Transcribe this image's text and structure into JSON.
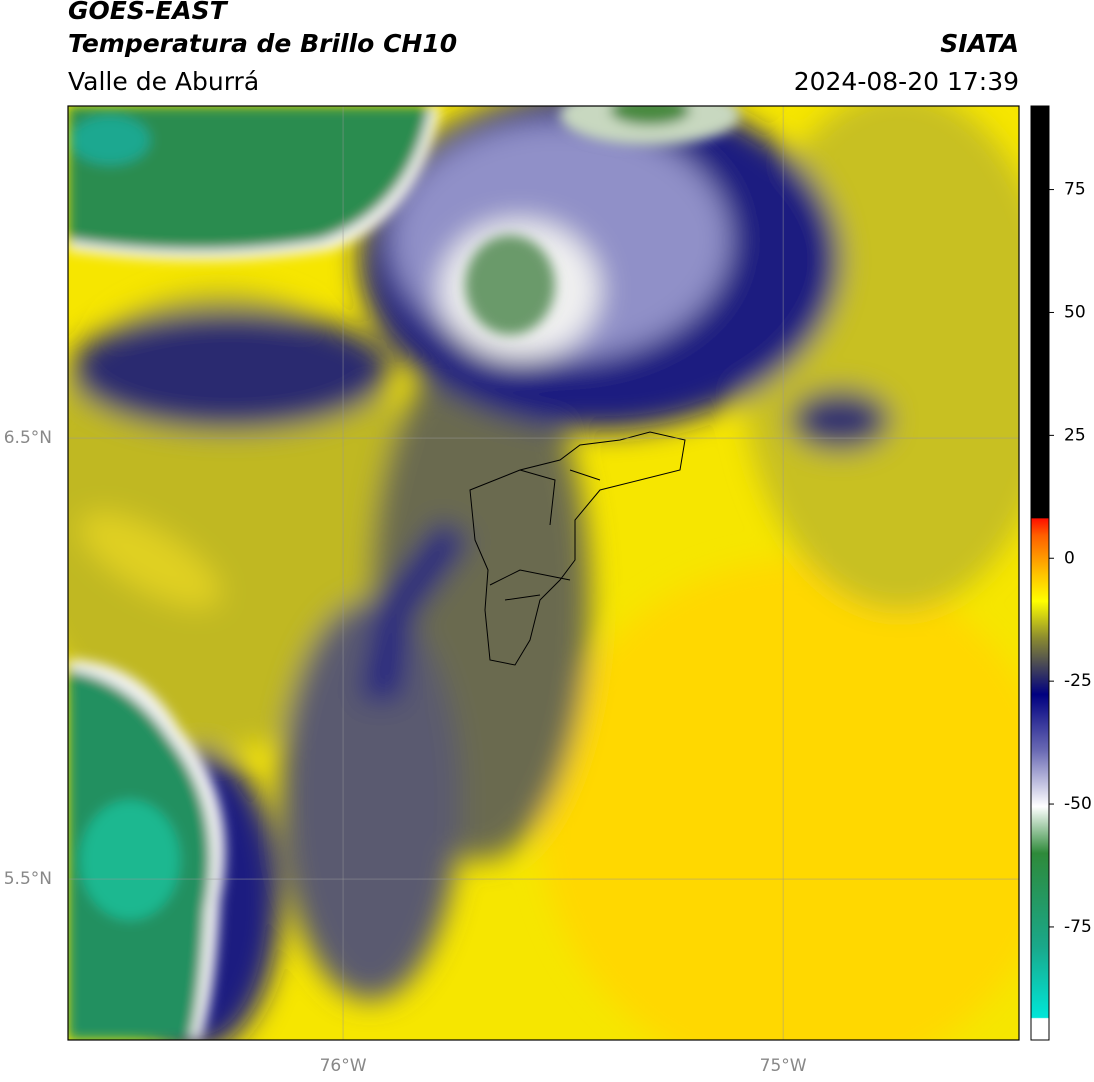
{
  "header": {
    "title": "GOES-EAST",
    "subtitle": "Temperatura de Brillo CH10",
    "region": "Valle de Aburrá",
    "source": "SIATA",
    "datetime": "2024-08-20 17:39"
  },
  "map": {
    "xlim": [
      -76.625,
      -74.464
    ],
    "ylim": [
      5.135,
      7.253
    ],
    "xticks": [
      {
        "value": -76,
        "label": "76°W"
      },
      {
        "value": -75,
        "label": "75°W"
      }
    ],
    "yticks": [
      {
        "value": 6.5,
        "label": "6.5°N"
      },
      {
        "value": 5.5,
        "label": "5.5°N"
      }
    ]
  },
  "colorbar": {
    "lim": [
      -98,
      92
    ],
    "ticks": [
      75,
      50,
      25,
      0,
      -25,
      -50,
      -75
    ]
  }
}
